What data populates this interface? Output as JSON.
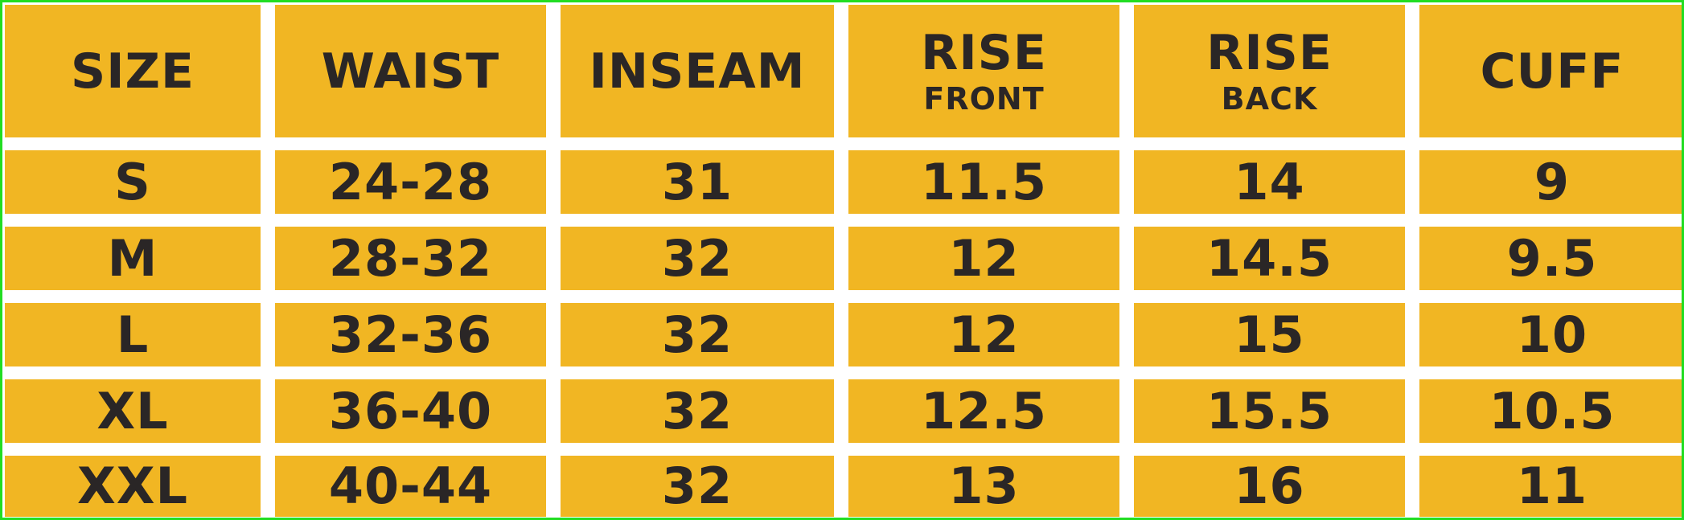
{
  "table": {
    "header": [
      {
        "main": "SIZE",
        "sub": ""
      },
      {
        "main": "WAIST",
        "sub": ""
      },
      {
        "main": "INSEAM",
        "sub": ""
      },
      {
        "main": "RISE",
        "sub": "FRONT"
      },
      {
        "main": "RISE",
        "sub": "BACK"
      },
      {
        "main": "CUFF",
        "sub": ""
      }
    ],
    "rows": [
      [
        "S",
        "24-28",
        "31",
        "11.5",
        "14",
        "9"
      ],
      [
        "M",
        "28-32",
        "32",
        "12",
        "14.5",
        "9.5"
      ],
      [
        "L",
        "32-36",
        "32",
        "12",
        "15",
        "10"
      ],
      [
        "XL",
        "36-40",
        "32",
        "12.5",
        "15.5",
        "10.5"
      ],
      [
        "XXL",
        "40-44",
        "32",
        "13",
        "16",
        "11"
      ]
    ]
  },
  "colors": {
    "cell_fill": "#f1b623",
    "text": "#2a2626",
    "gap": "#ffffff",
    "border": "#22dd22"
  }
}
